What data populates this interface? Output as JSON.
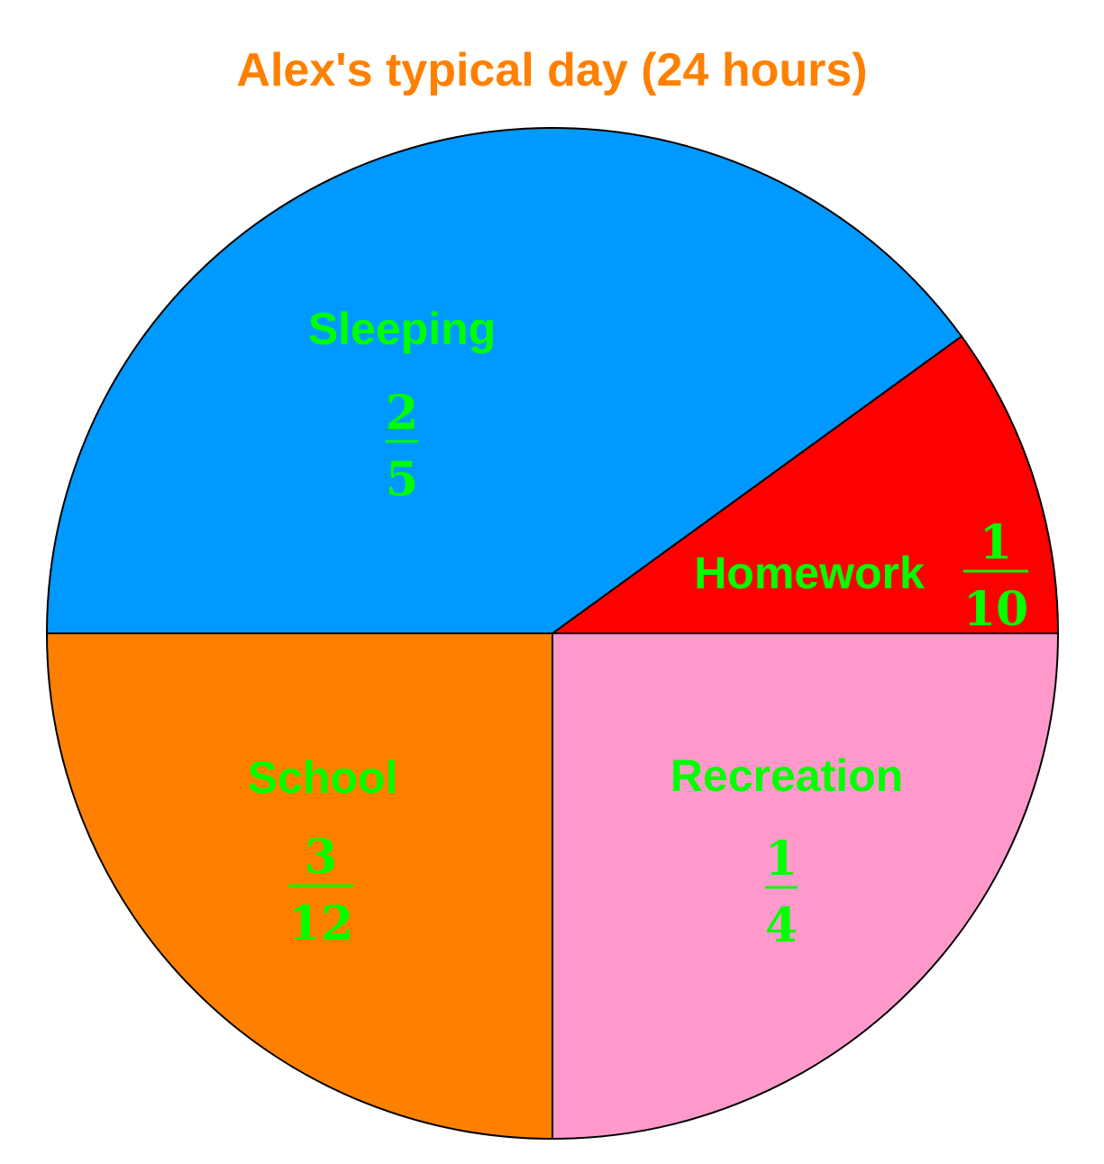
{
  "chart_data": {
    "type": "pie",
    "title": "Alex's typical day (24 hours)",
    "slices": [
      {
        "label": "Homework",
        "numerator": "1",
        "denominator": "10",
        "value": 0.1,
        "color": "#ff0000"
      },
      {
        "label": "Sleeping",
        "numerator": "2",
        "denominator": "5",
        "value": 0.4,
        "color": "#0099ff"
      },
      {
        "label": "School",
        "numerator": "3",
        "denominator": "12",
        "value": 0.25,
        "color": "#ff8000"
      },
      {
        "label": "Recreation",
        "numerator": "1",
        "denominator": "4",
        "value": 0.25,
        "color": "#ff99cc"
      }
    ],
    "label_color": "#00ff00",
    "title_color": "#ff8000"
  }
}
